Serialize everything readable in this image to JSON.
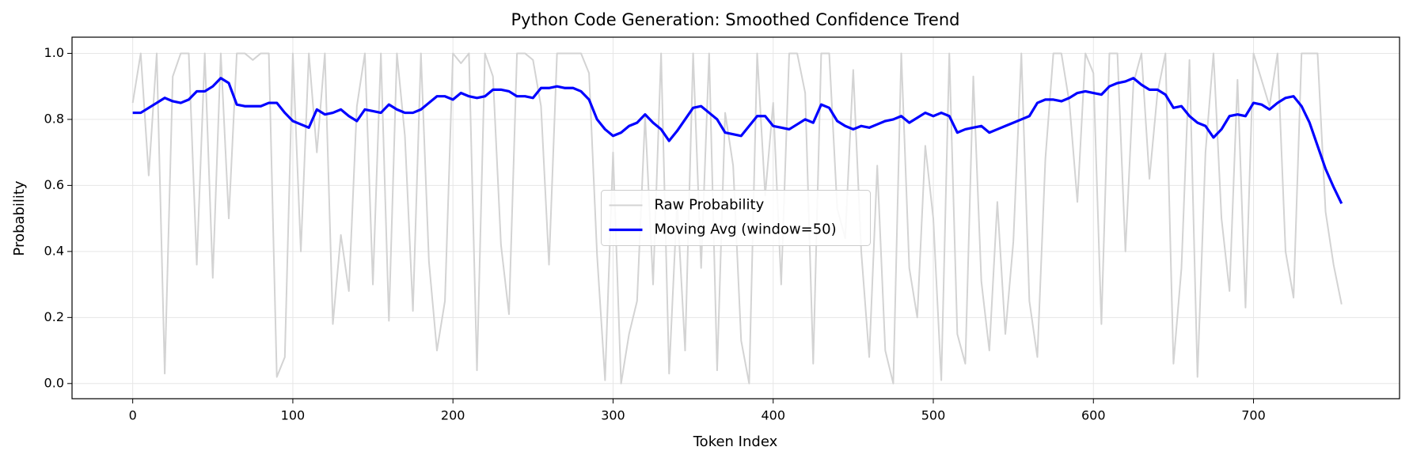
{
  "chart_data": {
    "type": "line",
    "title": "Python Code Generation: Smoothed Confidence Trend",
    "x_label": "Token Index",
    "y_label": "Probability",
    "xlim": [
      -37.9,
      791.2
    ],
    "ylim": [
      -0.046,
      1.049
    ],
    "xticks": [
      0,
      100,
      200,
      300,
      400,
      500,
      600,
      700
    ],
    "yticks": [
      {
        "value": 0,
        "label": "0.0"
      },
      0.2,
      0.4,
      0.6,
      0.8,
      {
        "value": 1,
        "label": "1.0"
      }
    ],
    "grid": true,
    "legend": "center",
    "x": [
      0,
      5,
      10,
      15,
      20,
      25,
      30,
      35,
      40,
      45,
      50,
      55,
      60,
      65,
      70,
      75,
      80,
      85,
      90,
      95,
      100,
      105,
      110,
      115,
      120,
      125,
      130,
      135,
      140,
      145,
      150,
      155,
      160,
      165,
      170,
      175,
      180,
      185,
      190,
      195,
      200,
      205,
      210,
      215,
      220,
      225,
      230,
      235,
      240,
      245,
      250,
      255,
      260,
      265,
      270,
      275,
      280,
      285,
      290,
      295,
      300,
      305,
      310,
      315,
      320,
      325,
      330,
      335,
      340,
      345,
      350,
      355,
      360,
      365,
      370,
      375,
      380,
      385,
      390,
      395,
      400,
      405,
      410,
      415,
      420,
      425,
      430,
      435,
      440,
      445,
      450,
      455,
      460,
      465,
      470,
      475,
      480,
      485,
      490,
      495,
      500,
      505,
      510,
      515,
      520,
      525,
      530,
      535,
      540,
      545,
      550,
      555,
      560,
      565,
      570,
      575,
      580,
      585,
      590,
      595,
      600,
      605,
      610,
      615,
      620,
      625,
      630,
      635,
      640,
      645,
      650,
      655,
      660,
      665,
      670,
      675,
      680,
      685,
      690,
      695,
      700,
      705,
      710,
      715,
      720,
      725,
      730,
      735,
      740,
      745,
      750,
      755
    ],
    "series": [
      {
        "name": "Raw Probability",
        "color": "#d3d3d3",
        "values": [
          0.85,
          1,
          0.63,
          1,
          0.03,
          0.93,
          1,
          1,
          0.36,
          1,
          0.32,
          1,
          0.5,
          1,
          1,
          0.98,
          1,
          1,
          0.02,
          0.08,
          1,
          0.4,
          1,
          0.7,
          1,
          0.18,
          0.45,
          0.28,
          0.84,
          1,
          0.3,
          1,
          0.19,
          1,
          0.75,
          0.22,
          1,
          0.37,
          0.1,
          0.25,
          1,
          0.97,
          1,
          0.04,
          1,
          0.93,
          0.42,
          0.21,
          1,
          1,
          0.98,
          0.84,
          0.36,
          1,
          1,
          1,
          1,
          0.94,
          0.39,
          0.01,
          0.7,
          0,
          0.15,
          0.25,
          0.81,
          0.3,
          1,
          0.03,
          0.55,
          0.1,
          1,
          0.35,
          1,
          0.04,
          0.82,
          0.66,
          0.13,
          0,
          1,
          0.57,
          0.85,
          0.3,
          1,
          1,
          0.88,
          0.06,
          1,
          1,
          0.53,
          0.44,
          0.95,
          0.4,
          0.08,
          0.66,
          0.1,
          0,
          1,
          0.35,
          0.2,
          0.72,
          0.5,
          0.01,
          1,
          0.15,
          0.06,
          0.93,
          0.31,
          0.1,
          0.55,
          0.15,
          0.43,
          1,
          0.25,
          0.08,
          0.68,
          1,
          1,
          0.85,
          0.55,
          1,
          0.94,
          0.18,
          1,
          1,
          0.4,
          0.91,
          1,
          0.62,
          0.88,
          1,
          0.06,
          0.35,
          0.98,
          0.02,
          0.7,
          1,
          0.5,
          0.28,
          0.92,
          0.23,
          1,
          0.92,
          0.84,
          1,
          0.4,
          0.26,
          1,
          1,
          1,
          0.52,
          0.36,
          0.24
        ]
      },
      {
        "name": "Moving Avg (window=50)",
        "color": "#0000ff",
        "values": [
          0.82,
          0.82,
          0.835,
          0.85,
          0.865,
          0.855,
          0.85,
          0.86,
          0.885,
          0.885,
          0.9,
          0.925,
          0.91,
          0.845,
          0.84,
          0.84,
          0.84,
          0.85,
          0.85,
          0.82,
          0.795,
          0.785,
          0.775,
          0.83,
          0.815,
          0.82,
          0.83,
          0.81,
          0.795,
          0.83,
          0.825,
          0.82,
          0.845,
          0.83,
          0.82,
          0.82,
          0.83,
          0.85,
          0.87,
          0.87,
          0.86,
          0.88,
          0.87,
          0.865,
          0.87,
          0.89,
          0.89,
          0.885,
          0.87,
          0.87,
          0.865,
          0.895,
          0.895,
          0.9,
          0.895,
          0.895,
          0.885,
          0.86,
          0.8,
          0.77,
          0.75,
          0.76,
          0.78,
          0.79,
          0.815,
          0.79,
          0.77,
          0.735,
          0.765,
          0.8,
          0.835,
          0.84,
          0.82,
          0.8,
          0.76,
          0.755,
          0.75,
          0.78,
          0.81,
          0.81,
          0.78,
          0.775,
          0.77,
          0.785,
          0.8,
          0.79,
          0.845,
          0.835,
          0.795,
          0.78,
          0.77,
          0.78,
          0.775,
          0.785,
          0.795,
          0.8,
          0.81,
          0.79,
          0.805,
          0.82,
          0.81,
          0.82,
          0.81,
          0.76,
          0.77,
          0.775,
          0.78,
          0.76,
          0.77,
          0.78,
          0.79,
          0.8,
          0.81,
          0.85,
          0.86,
          0.86,
          0.855,
          0.865,
          0.88,
          0.885,
          0.88,
          0.875,
          0.9,
          0.91,
          0.915,
          0.925,
          0.905,
          0.89,
          0.89,
          0.875,
          0.835,
          0.84,
          0.81,
          0.79,
          0.78,
          0.745,
          0.77,
          0.81,
          0.815,
          0.81,
          0.85,
          0.845,
          0.83,
          0.85,
          0.865,
          0.87,
          0.84,
          0.79,
          0.72,
          0.65,
          0.595,
          0.545
        ]
      }
    ]
  }
}
